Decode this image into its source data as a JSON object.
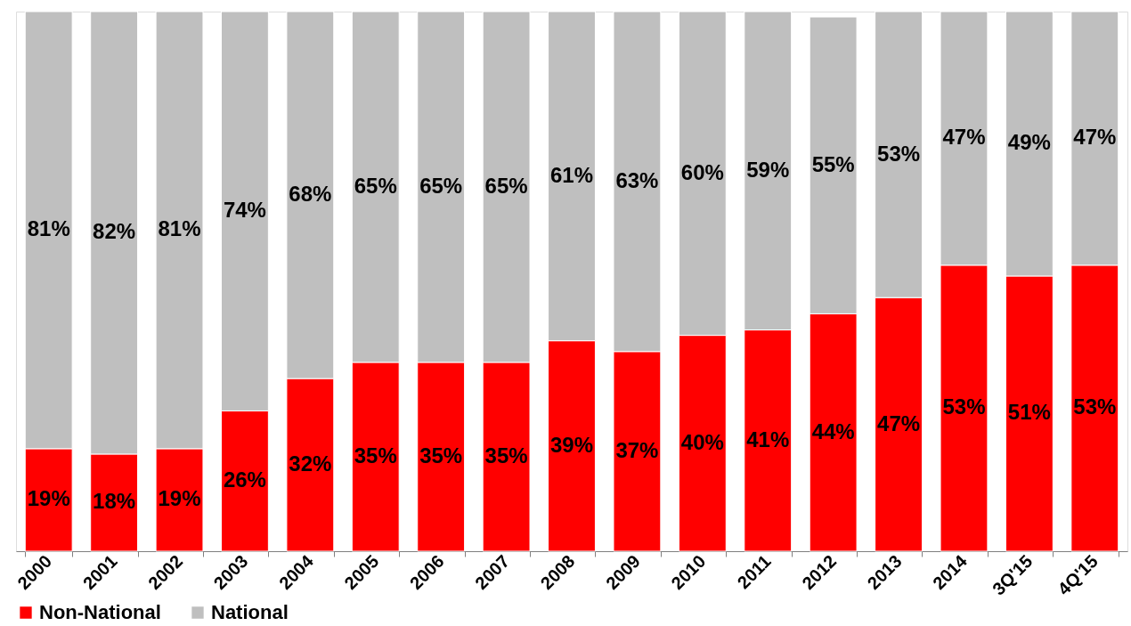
{
  "chart_data": {
    "type": "bar",
    "stacked": true,
    "legend": "bottom",
    "categories": [
      "2000",
      "2001",
      "2002",
      "2003",
      "2004",
      "2005",
      "2006",
      "2007",
      "2008",
      "2009",
      "2010",
      "2011",
      "2012",
      "2013",
      "2014",
      "3Q'15",
      "4Q'15"
    ],
    "series": [
      {
        "name": "Non-National",
        "color": "#ff0000",
        "values": [
          19,
          18,
          19,
          26,
          32,
          35,
          35,
          35,
          39,
          37,
          40,
          41,
          44,
          47,
          53,
          51,
          53
        ],
        "value_labels": [
          "19%",
          "18%",
          "19%",
          "26%",
          "32%",
          "35%",
          "35%",
          "35%",
          "39%",
          "37%",
          "40%",
          "41%",
          "44%",
          "47%",
          "53%",
          "51%",
          "53%"
        ]
      },
      {
        "name": "National",
        "color": "#bfbfbf",
        "values": [
          81,
          82,
          81,
          74,
          68,
          65,
          65,
          65,
          61,
          63,
          60,
          59,
          55,
          53,
          47,
          49,
          47
        ],
        "value_labels": [
          "81%",
          "82%",
          "81%",
          "74%",
          "68%",
          "65%",
          "65%",
          "65%",
          "61%",
          "63%",
          "60%",
          "59%",
          "55%",
          "53%",
          "47%",
          "49%",
          "47%"
        ]
      }
    ]
  }
}
